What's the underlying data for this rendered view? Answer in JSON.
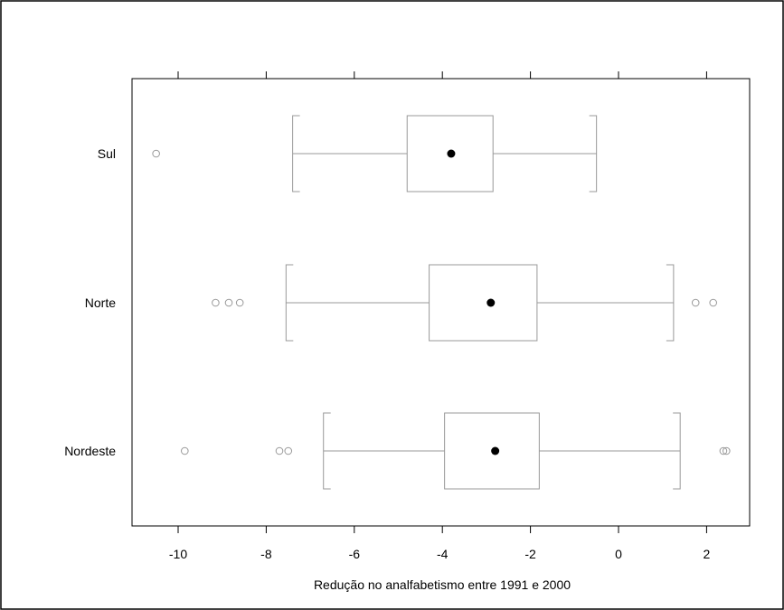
{
  "chart_data": {
    "type": "boxplot",
    "orientation": "horizontal",
    "xlabel": "Redução no analfabetismo entre 1991 e 2000",
    "ylabel": "",
    "xlim": [
      -11,
      2.5
    ],
    "xticks": [
      -10,
      -8,
      -6,
      -4,
      -2,
      0,
      2
    ],
    "xtick_labels": [
      "-10",
      "-8",
      "-6",
      "-4",
      "-2",
      "0",
      "2"
    ],
    "grid": false,
    "categories": [
      "Sul",
      "Norte",
      "Nordeste"
    ],
    "boxes": [
      {
        "category": "Sul",
        "whisker_low": -7.4,
        "q1": -4.8,
        "median": -3.8,
        "q3": -2.85,
        "whisker_high": -0.5,
        "outliers": [
          -10.5
        ]
      },
      {
        "category": "Norte",
        "whisker_low": -7.55,
        "q1": -4.3,
        "median": -2.9,
        "q3": -1.85,
        "whisker_high": 1.25,
        "outliers": [
          -9.15,
          -8.85,
          -8.6,
          1.75,
          2.15
        ]
      },
      {
        "category": "Nordeste",
        "whisker_low": -6.7,
        "q1": -3.95,
        "median": -2.8,
        "q3": -1.8,
        "whisker_high": 1.4,
        "outliers": [
          -9.85,
          -7.7,
          -7.5,
          2.38,
          2.45
        ]
      }
    ],
    "colors": {
      "box": "#999999",
      "median_point": "#000000",
      "outlier": "#999999",
      "axes": "#000000"
    }
  }
}
